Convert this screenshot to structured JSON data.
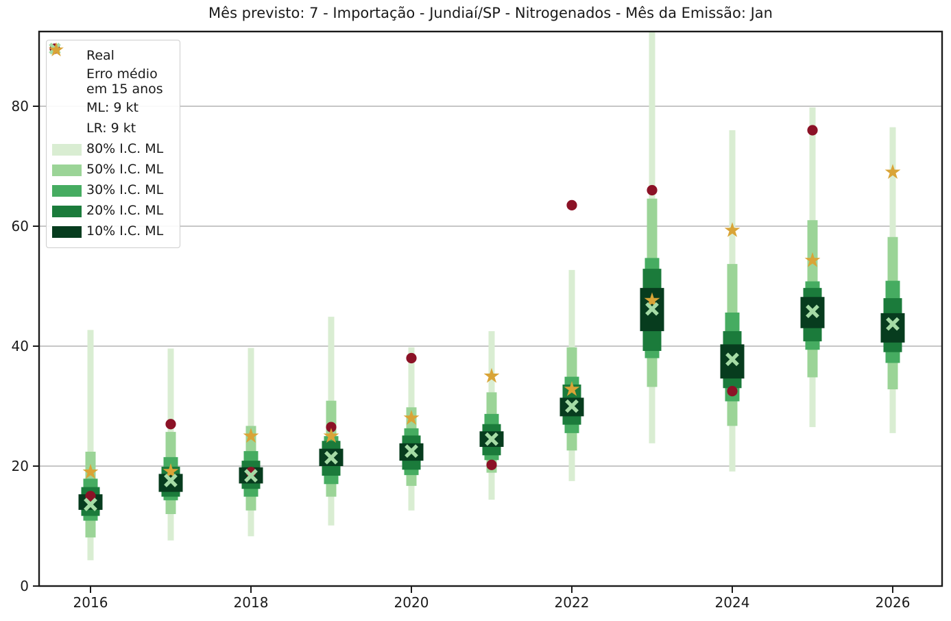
{
  "title": "Mês previsto: 7 - Importação - Jundiaí/SP - Nitrogenados - Mês da Emissão: Jan",
  "legend": {
    "entries": [
      {
        "label": "Real",
        "marker": "dot",
        "color_key": "real"
      },
      {
        "label": "Erro médio\nem 15 anos",
        "marker": "none"
      },
      {
        "label": "ML: 9 kt",
        "marker": "x",
        "color_key": "ml"
      },
      {
        "label": "LR: 9 kt",
        "marker": "star",
        "color_key": "lr"
      },
      {
        "label": "80% I.C. ML",
        "marker": "patch",
        "color_key": "ci80"
      },
      {
        "label": "50% I.C. ML",
        "marker": "patch",
        "color_key": "ci50"
      },
      {
        "label": "30% I.C. ML",
        "marker": "patch",
        "color_key": "ci30"
      },
      {
        "label": "20% I.C. ML",
        "marker": "patch",
        "color_key": "ci20"
      },
      {
        "label": "10% I.C. ML",
        "marker": "patch",
        "color_key": "ci10"
      }
    ]
  },
  "chart_data": {
    "type": "fan-forecast",
    "title": "Mês previsto: 7 - Importação - Jundiaí/SP - Nitrogenados - Mês da Emissão: Jan",
    "unit": "kt",
    "x_ticks": [
      2016,
      2018,
      2020,
      2022,
      2024,
      2026
    ],
    "y_ticks": [
      0,
      20,
      40,
      60,
      80
    ],
    "xlim": [
      2015.36,
      2026.62
    ],
    "ylim": [
      0,
      92.5
    ],
    "grid": "horizontal",
    "legend_position": "upper-left",
    "years": [
      2016,
      2017,
      2018,
      2019,
      2020,
      2021,
      2022,
      2023,
      2024,
      2025,
      2026
    ],
    "series": {
      "real": [
        15.0,
        27.0,
        19.0,
        26.5,
        38.0,
        20.2,
        63.5,
        66.0,
        32.5,
        76.0,
        null
      ],
      "ml": [
        13.6,
        17.6,
        18.4,
        21.4,
        22.5,
        24.5,
        30.0,
        46.2,
        37.8,
        45.8,
        43.7
      ],
      "lr": [
        19.0,
        19.1,
        25.0,
        25.0,
        28.0,
        35.0,
        32.8,
        47.6,
        59.3,
        54.3,
        69.0
      ],
      "ci10": [
        [
          12.7,
          15.3
        ],
        [
          15.7,
          18.7
        ],
        [
          17.1,
          19.8
        ],
        [
          20.0,
          22.9
        ],
        [
          20.9,
          23.8
        ],
        [
          23.2,
          25.8
        ],
        [
          28.3,
          31.4
        ],
        [
          42.5,
          49.7
        ],
        [
          34.6,
          40.3
        ],
        [
          43.0,
          48.2
        ],
        [
          40.6,
          45.5
        ]
      ],
      "ci20": [
        [
          11.7,
          16.5
        ],
        [
          14.9,
          19.9
        ],
        [
          16.2,
          20.9
        ],
        [
          18.4,
          24.2
        ],
        [
          19.4,
          25.1
        ],
        [
          21.8,
          27.0
        ],
        [
          26.9,
          33.6
        ],
        [
          39.2,
          52.9
        ],
        [
          33.0,
          42.5
        ],
        [
          40.8,
          49.7
        ],
        [
          39.0,
          48.0
        ]
      ],
      "ci30": [
        [
          10.9,
          17.9
        ],
        [
          14.3,
          21.5
        ],
        [
          14.9,
          22.5
        ],
        [
          17.0,
          25.0
        ],
        [
          18.5,
          26.3
        ],
        [
          21.0,
          28.7
        ],
        [
          25.5,
          34.9
        ],
        [
          38.0,
          54.7
        ],
        [
          30.8,
          45.6
        ],
        [
          39.4,
          50.8
        ],
        [
          37.2,
          50.9
        ]
      ],
      "ci50": [
        [
          8.1,
          22.4
        ],
        [
          12.0,
          25.7
        ],
        [
          12.6,
          26.7
        ],
        [
          14.9,
          30.9
        ],
        [
          16.7,
          29.8
        ],
        [
          18.9,
          32.3
        ],
        [
          22.6,
          39.8
        ],
        [
          33.2,
          64.6
        ],
        [
          26.7,
          53.7
        ],
        [
          34.8,
          61.0
        ],
        [
          32.8,
          58.2
        ]
      ],
      "ci80": [
        [
          4.3,
          42.7
        ],
        [
          7.6,
          39.6
        ],
        [
          8.3,
          39.7
        ],
        [
          10.1,
          44.9
        ],
        [
          12.6,
          39.8
        ],
        [
          14.4,
          42.5
        ],
        [
          17.5,
          52.7
        ],
        [
          23.8,
          95.0
        ],
        [
          19.1,
          76.0
        ],
        [
          26.5,
          79.8
        ],
        [
          25.5,
          76.5
        ]
      ]
    },
    "colors": {
      "real": "#8b1226",
      "lr": "#d9a437",
      "ml": "#a5dba5",
      "ci80": "#d9edd2",
      "ci50": "#9bd497",
      "ci30": "#46ac61",
      "ci20": "#1b7b3b",
      "ci10": "#073c1e",
      "grid": "#c6c6c6",
      "axis": "#1a1a1a"
    }
  }
}
